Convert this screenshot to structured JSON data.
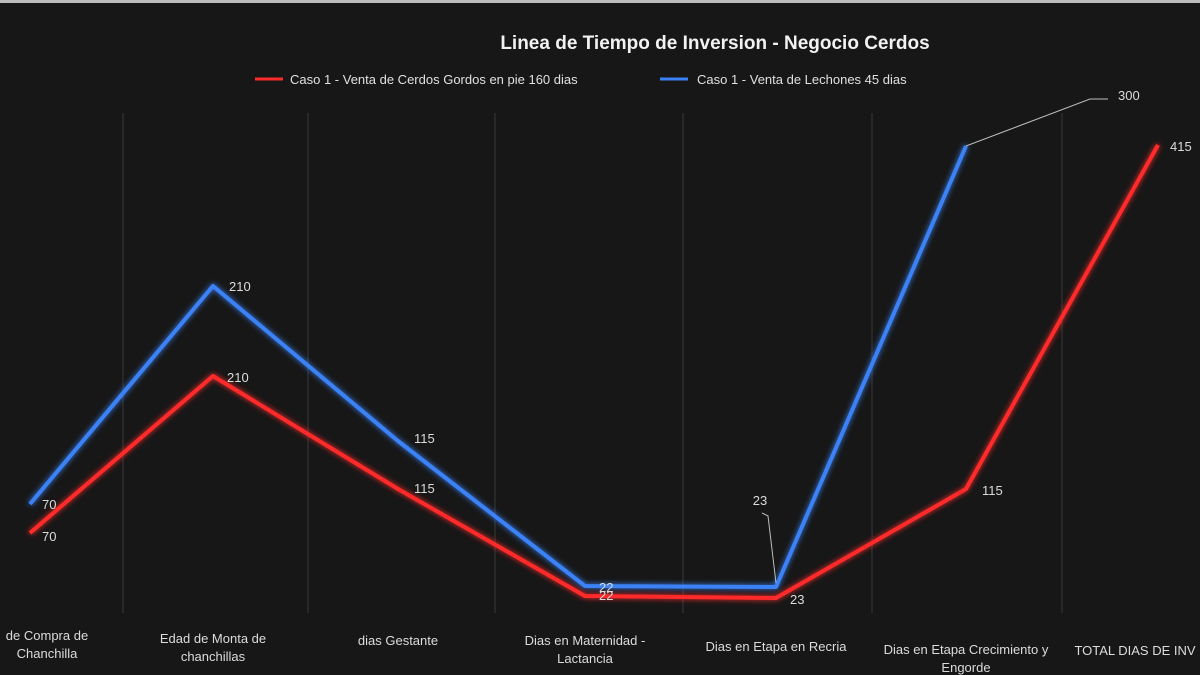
{
  "chart_data": {
    "type": "line",
    "title": "Linea de Tiempo de Inversion - Negocio Cerdos",
    "categories": [
      [
        "de Compra de",
        "Chanchilla"
      ],
      [
        "Edad de Monta de",
        "chanchillas"
      ],
      [
        "dias Gestante"
      ],
      [
        "Dias en Maternidad -",
        "Lactancia"
      ],
      [
        "Dias en Etapa en Recria"
      ],
      [
        "Dias en Etapa Crecimiento y",
        "Engorde"
      ],
      [
        "TOTAL DIAS DE INV"
      ]
    ],
    "series": [
      {
        "name": "Caso 1 - Venta de Cerdos Gordos en pie 160 dias",
        "color": "#ff2a2a",
        "values": [
          70,
          210,
          115,
          22,
          23,
          115,
          415
        ]
      },
      {
        "name": "Caso 1 - Venta de Lechones 45 dias",
        "color": "#3b82f6",
        "values": [
          70,
          210,
          115,
          22,
          23,
          300,
          null
        ]
      }
    ],
    "xlabel": "",
    "ylabel": "",
    "grid": "vertical",
    "legend": "top"
  }
}
